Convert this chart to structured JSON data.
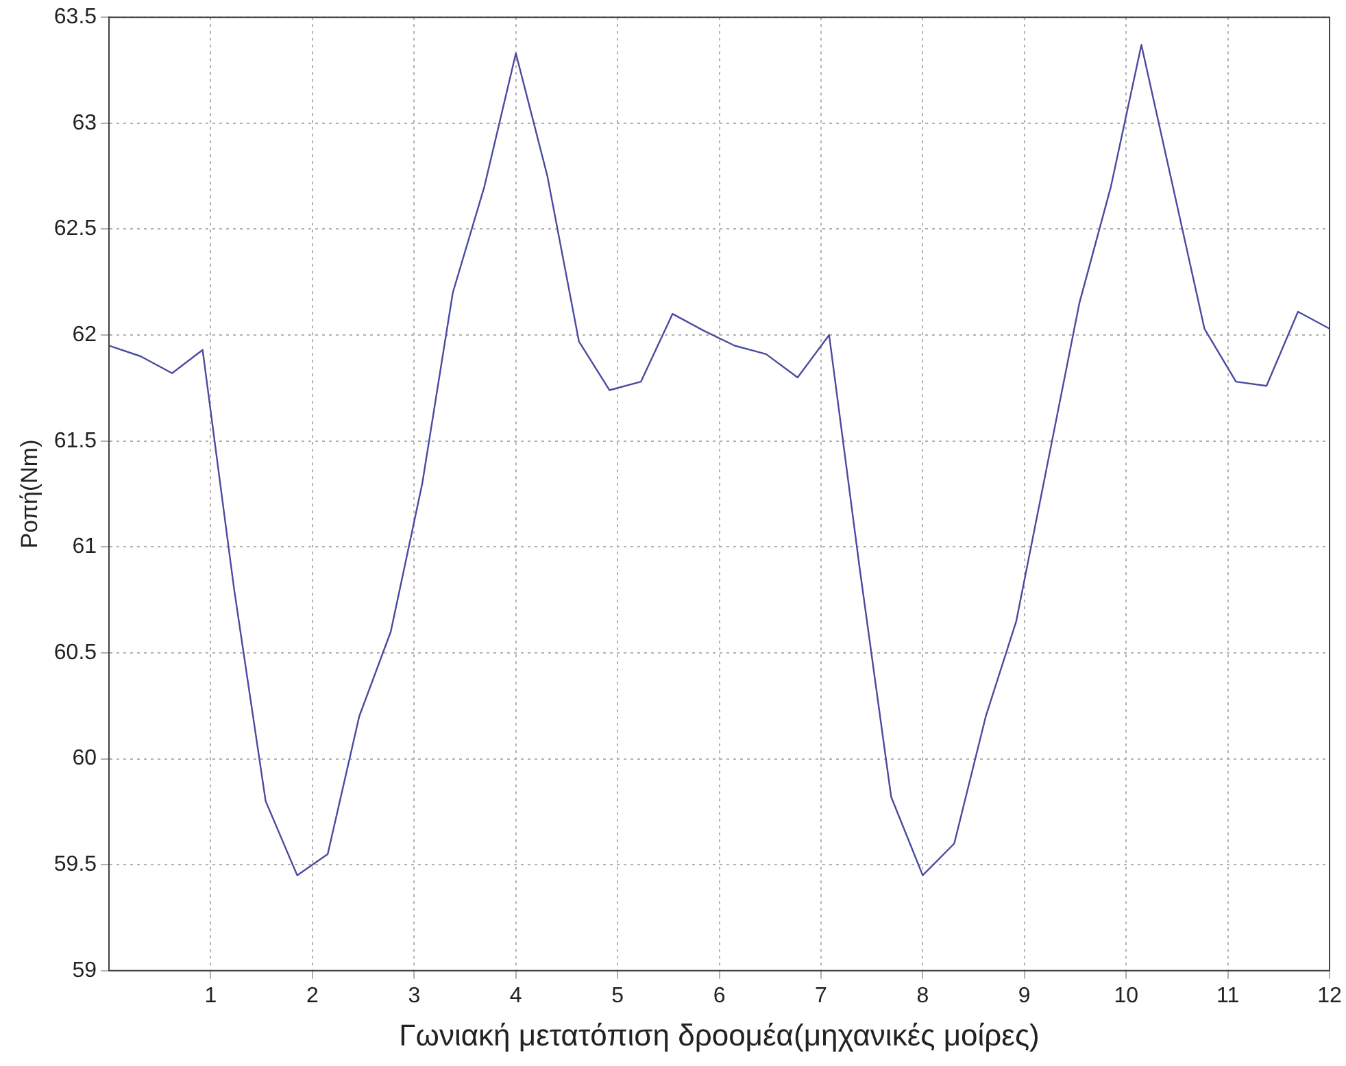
{
  "chart_data": {
    "type": "line",
    "xlabel": "Γωνιακή μετατόπιση δροομέα(μηχανικές μοίρες)",
    "ylabel": "Ροπή(Nm)",
    "x": [
      0,
      0.31,
      0.62,
      0.92,
      1.23,
      1.54,
      1.85,
      2.15,
      2.46,
      2.77,
      3.08,
      3.38,
      3.69,
      4.0,
      4.31,
      4.62,
      4.92,
      5.23,
      5.54,
      5.85,
      6.15,
      6.46,
      6.77,
      7.08,
      7.38,
      7.69,
      8.0,
      8.31,
      8.62,
      8.92,
      9.23,
      9.54,
      9.85,
      10.15,
      10.46,
      10.77,
      11.08,
      11.38,
      11.69,
      12
    ],
    "series": [
      {
        "color": "#4a4aa0",
        "values": [
          61.95,
          61.9,
          61.82,
          61.93,
          60.8,
          59.8,
          59.45,
          59.55,
          60.2,
          60.6,
          61.3,
          62.2,
          62.7,
          63.33,
          62.75,
          61.97,
          61.74,
          61.78,
          62.1,
          62.02,
          61.95,
          61.91,
          61.8,
          62.0,
          60.9,
          59.82,
          59.45,
          59.6,
          60.2,
          60.65,
          61.4,
          62.15,
          62.7,
          63.37,
          62.7,
          62.03,
          61.78,
          61.76,
          62.11,
          62.03
        ]
      }
    ],
    "xlim": [
      0,
      12
    ],
    "xticks": [
      1,
      2,
      3,
      4,
      5,
      6,
      7,
      8,
      9,
      10,
      11,
      12
    ],
    "ylim": [
      59,
      63.5
    ],
    "yticks": [
      59,
      59.5,
      60,
      60.5,
      61,
      61.5,
      62,
      62.5,
      63,
      63.5
    ],
    "grid": true,
    "legend": false,
    "marker": "none",
    "line_style": "solid"
  }
}
